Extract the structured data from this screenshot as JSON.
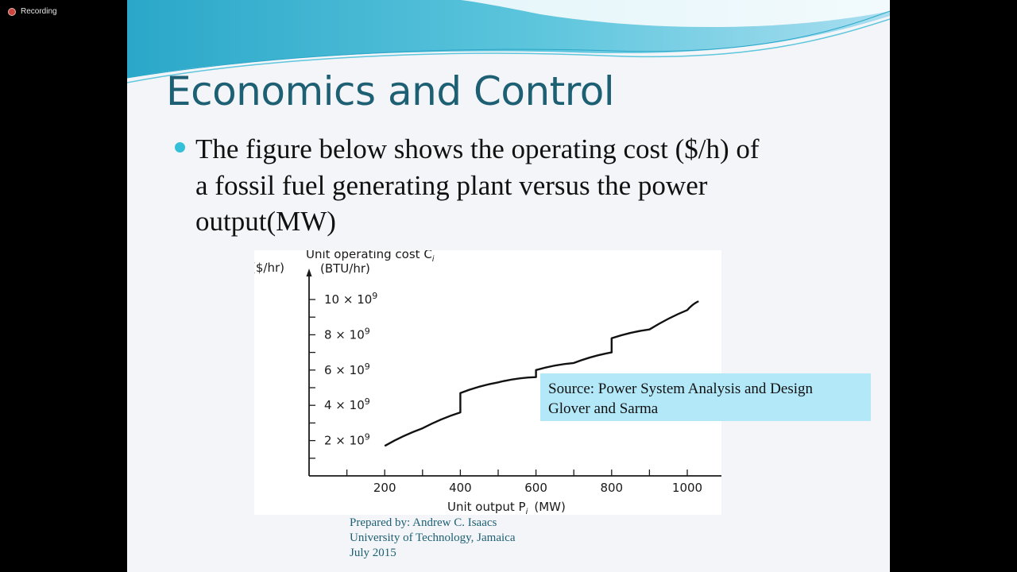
{
  "overlay": {
    "recording_label": "Recording",
    "recording_color": "#c9453d"
  },
  "slide": {
    "title": "Economics and Control",
    "bullet_lines": [
      "The figure below shows the operating cost ($/h) of",
      "a fossil fuel generating plant versus the power",
      "output(MW)"
    ],
    "source_lines": [
      "Source: Power System Analysis and Design",
      "Glover and Sarma"
    ],
    "credit_lines": [
      "Prepared by: Andrew C. Isaacs",
      "University of Technology, Jamaica",
      "July 2015"
    ],
    "colors": {
      "title": "#1d5f73",
      "bullet": "#35c0d9",
      "source_bg": "#b3e8f8",
      "wave": "#5ec6dd"
    }
  },
  "chart_data": {
    "type": "line",
    "ylabel_left": "($/hr)",
    "ylabel_lines": [
      "Unit operating cost C",
      "(BTU/hr)"
    ],
    "ylabel_subscript": "i",
    "xlabel": "Unit output  P",
    "xlabel_subscript": "i",
    "xlabel_unit": "(MW)",
    "xlim": [
      0,
      1100
    ],
    "ylim": [
      0,
      11
    ],
    "x_ticks": [
      200,
      400,
      600,
      800,
      1000
    ],
    "y_ticks": [
      {
        "value": 2,
        "mantissa": "2",
        "times": "×",
        "base": "10",
        "exp": "9"
      },
      {
        "value": 4,
        "mantissa": "4",
        "times": "×",
        "base": "10",
        "exp": "9"
      },
      {
        "value": 6,
        "mantissa": "6",
        "times": "×",
        "base": "10",
        "exp": "9"
      },
      {
        "value": 8,
        "mantissa": "8",
        "times": "×",
        "base": "10",
        "exp": "9"
      },
      {
        "value": 10,
        "mantissa": "10",
        "times": "×",
        "base": "10",
        "exp": "9"
      }
    ],
    "series": [
      {
        "x": [
          200,
          300,
          400,
          400,
          500,
          600,
          600,
          700,
          800,
          800,
          900,
          1000,
          1030
        ],
        "y": [
          1.7,
          2.7,
          3.6,
          4.7,
          5.3,
          5.6,
          6.0,
          6.4,
          7.0,
          7.8,
          8.3,
          9.4,
          9.9
        ]
      }
    ]
  }
}
